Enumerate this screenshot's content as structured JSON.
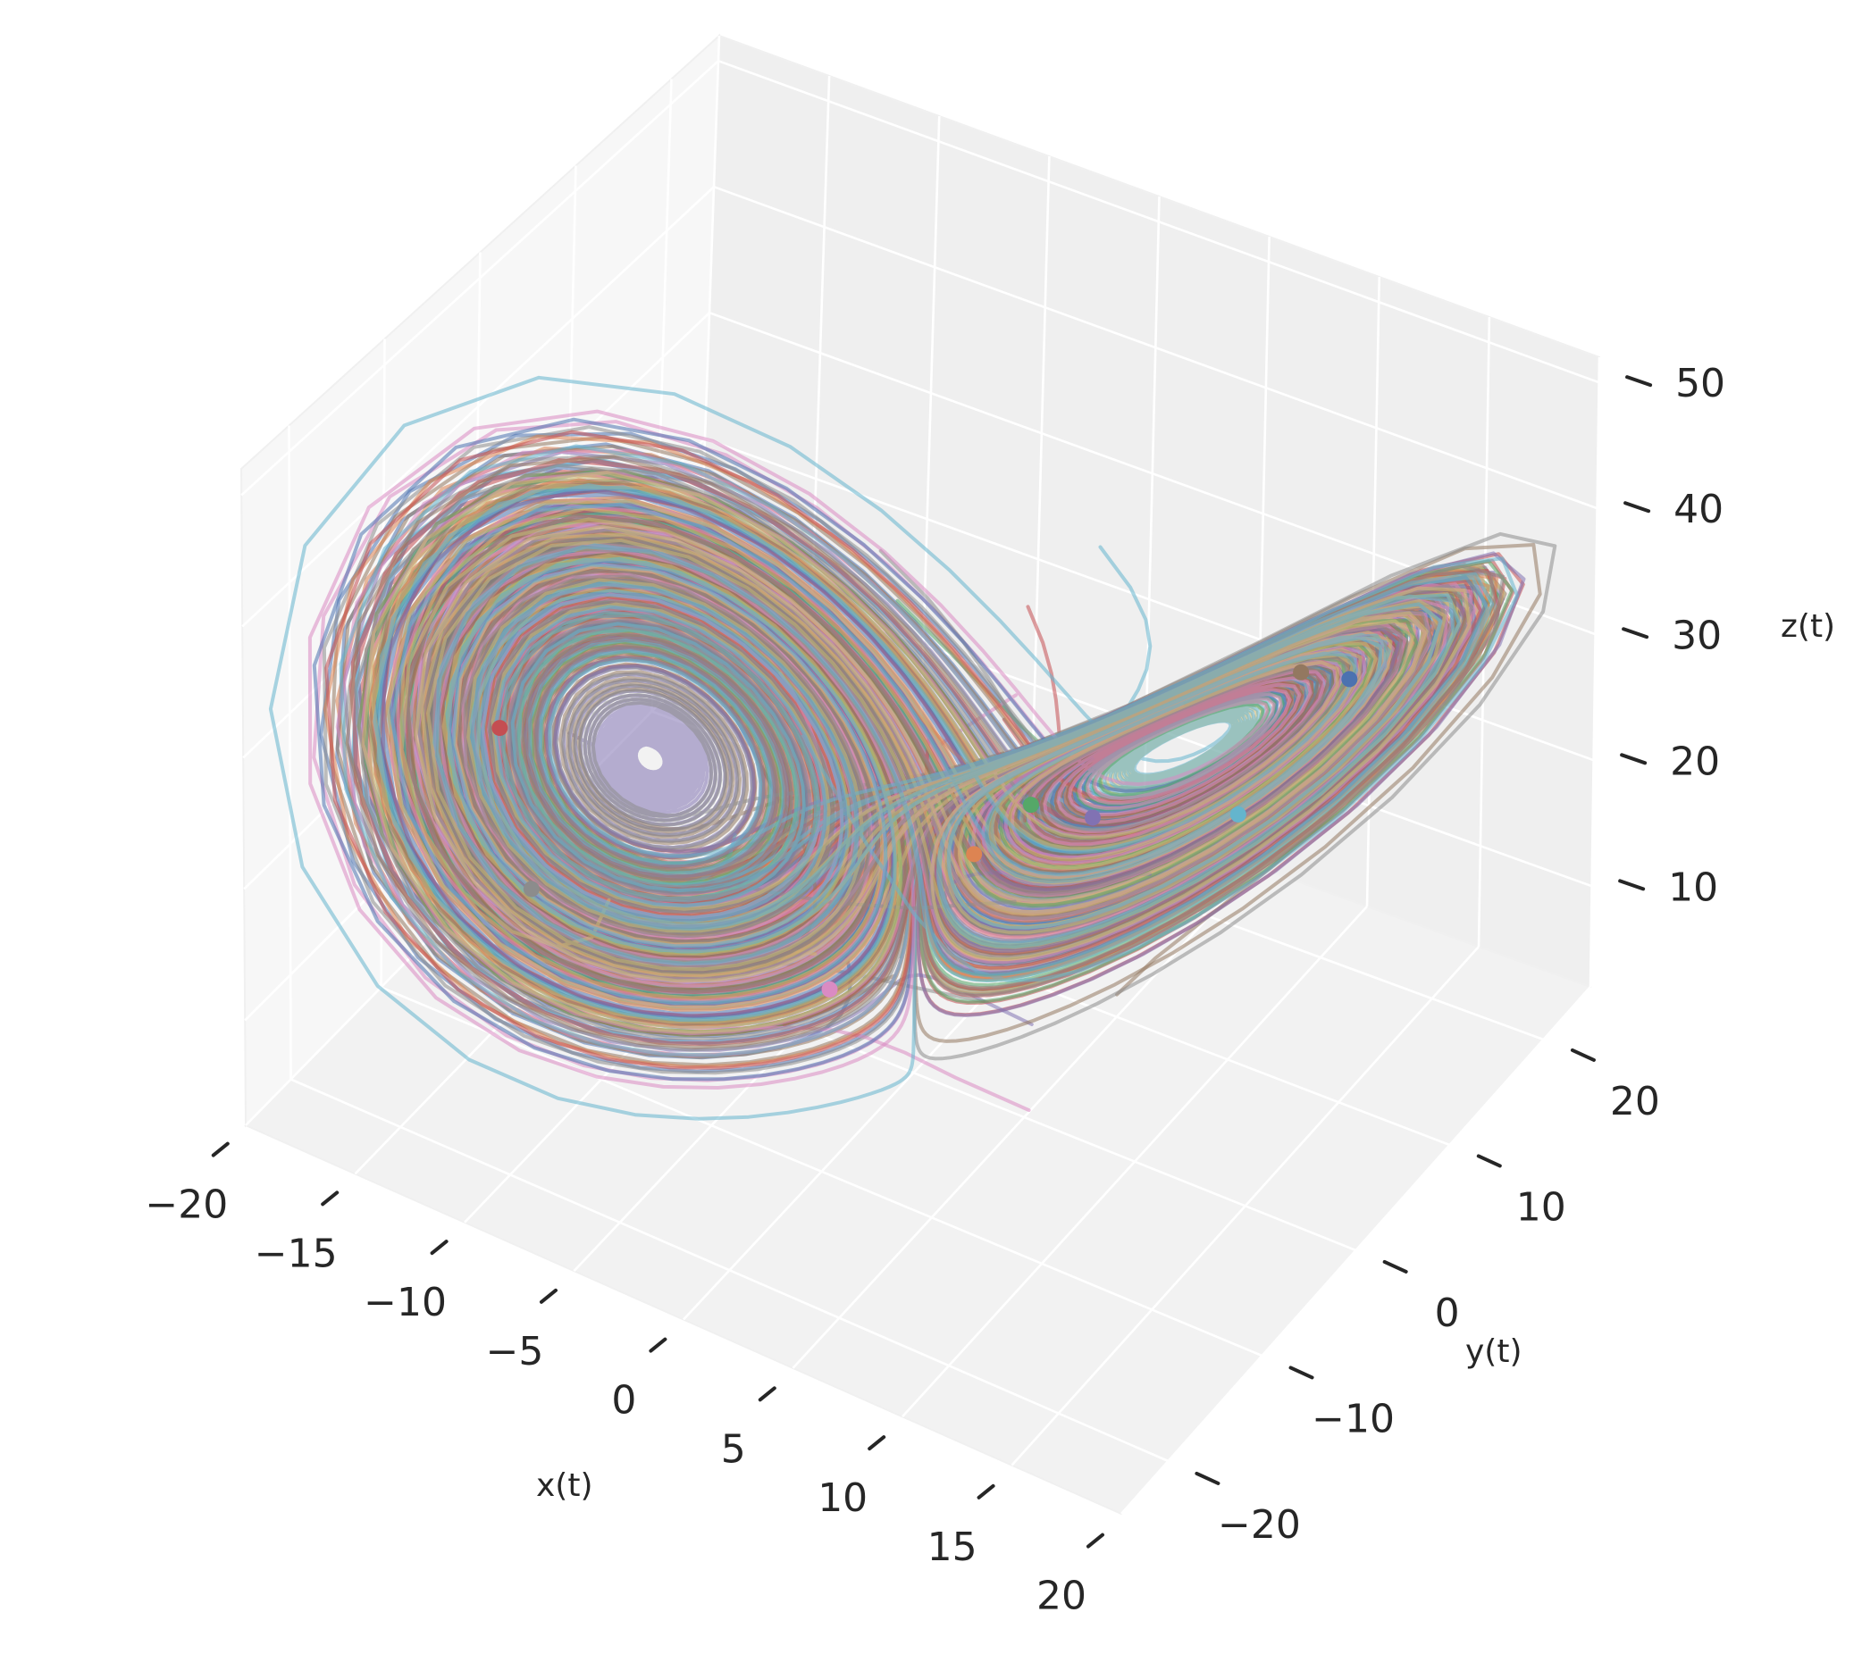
{
  "chart_data": {
    "type": "line",
    "projection": "3d",
    "title": "",
    "xlabel": "x(t)",
    "ylabel": "y(t)",
    "zlabel": "z(t)",
    "xlim": [
      -20,
      20
    ],
    "ylim": [
      -25,
      25
    ],
    "zlim": [
      2,
      52
    ],
    "x_ticks": [
      "−20",
      "−15",
      "−10",
      "−5",
      "0",
      "5",
      "10",
      "15",
      "20"
    ],
    "y_ticks": [
      "−20",
      "−10",
      "0",
      "10",
      "20"
    ],
    "z_ticks": [
      "10",
      "20",
      "30",
      "40",
      "50"
    ],
    "grid": true,
    "series_count": 30,
    "colors": [
      "#4c72b0",
      "#dd8452",
      "#55a868",
      "#c44e52",
      "#8172b3",
      "#937860",
      "#da8bc3",
      "#8c8c8c",
      "#ccb974",
      "#64b5cd"
    ],
    "end_points": [
      {
        "x": 14.0,
        "y": 13.0,
        "z": 32.5,
        "color": "#4c72b0"
      },
      {
        "x": 2.0,
        "y": 1.5,
        "z": 19.5,
        "color": "#dd8452"
      },
      {
        "x": 3.5,
        "y": 4.0,
        "z": 22.5,
        "color": "#55a868"
      },
      {
        "x": -13.0,
        "y": -14.0,
        "z": 30.0,
        "color": "#c44e52"
      },
      {
        "x": 4.0,
        "y": 9.5,
        "z": 17.5,
        "color": "#8172b3"
      },
      {
        "x": 13.5,
        "y": 9.0,
        "z": 36.0,
        "color": "#937860"
      },
      {
        "x": -3.0,
        "y": -2.0,
        "z": 8.0,
        "color": "#da8bc3"
      },
      {
        "x": -13.0,
        "y": -10.5,
        "z": 15.0,
        "color": "#8c8c8c"
      },
      {
        "x": 9.5,
        "y": 12.0,
        "z": 19.5,
        "color": "#64b5cd"
      }
    ]
  }
}
